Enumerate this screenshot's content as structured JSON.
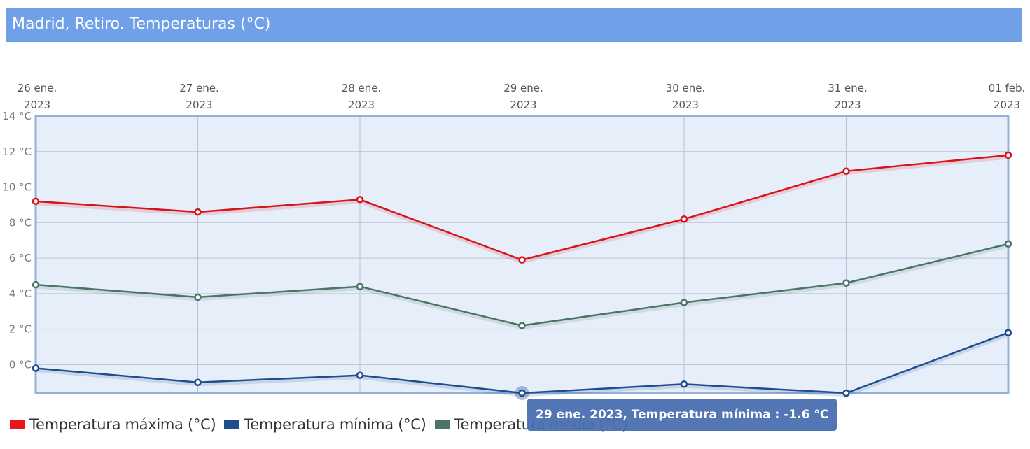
{
  "header": {
    "title": "Madrid, Retiro. Temperaturas (°C)"
  },
  "colors": {
    "header_bg": "#6fa0e8",
    "plot_bg": "#e6eefa",
    "plot_border": "#92b1dd",
    "grid": "#b9c3d3",
    "max": "#d7141a",
    "min": "#1f4d8e",
    "media": "#4a7565",
    "tooltip_bg": "#4a6fb0"
  },
  "legend": {
    "items": [
      {
        "label": "Temperatura máxima (°C)",
        "color": "#e8161b"
      },
      {
        "label": "Temperatura mínima (°C)",
        "color": "#1f4d8e"
      },
      {
        "label": "Temperatura media (°C)",
        "color": "#4a7565"
      }
    ]
  },
  "tooltip": {
    "text": "29 ene. 2023, Temperatura mínima : -1.6 °C",
    "series": "Temperatura mínima",
    "category_index": 3
  },
  "chart_data": {
    "type": "line",
    "title": "Madrid, Retiro. Temperaturas (°C)",
    "xlabel": "",
    "ylabel": "",
    "categories": [
      [
        "26 ene.",
        "2023"
      ],
      [
        "27 ene.",
        "2023"
      ],
      [
        "28 ene.",
        "2023"
      ],
      [
        "29 ene.",
        "2023"
      ],
      [
        "30 ene.",
        "2023"
      ],
      [
        "31 ene.",
        "2023"
      ],
      [
        "01 feb.",
        "2023"
      ]
    ],
    "x_axis_position": "top",
    "yticks": [
      0,
      2,
      4,
      6,
      8,
      10,
      12,
      14
    ],
    "ytick_labels": [
      "0 °C",
      "2 °C",
      "4 °C",
      "6 °C",
      "8 °C",
      "10 °C",
      "12 °C",
      "14 °C"
    ],
    "ylim": [
      -1.6,
      14
    ],
    "grid": true,
    "legend_position": "bottom",
    "series": [
      {
        "name": "Temperatura máxima (°C)",
        "color": "#d7141a",
        "values": [
          9.2,
          8.6,
          9.3,
          5.9,
          8.2,
          10.9,
          11.8
        ]
      },
      {
        "name": "Temperatura mínima (°C)",
        "color": "#1f4d8e",
        "values": [
          -0.2,
          -1.0,
          -0.6,
          -1.6,
          -1.1,
          -1.6,
          1.8
        ]
      },
      {
        "name": "Temperatura media (°C)",
        "color": "#4a7565",
        "values": [
          4.5,
          3.8,
          4.4,
          2.2,
          3.5,
          4.6,
          6.8
        ]
      }
    ]
  }
}
